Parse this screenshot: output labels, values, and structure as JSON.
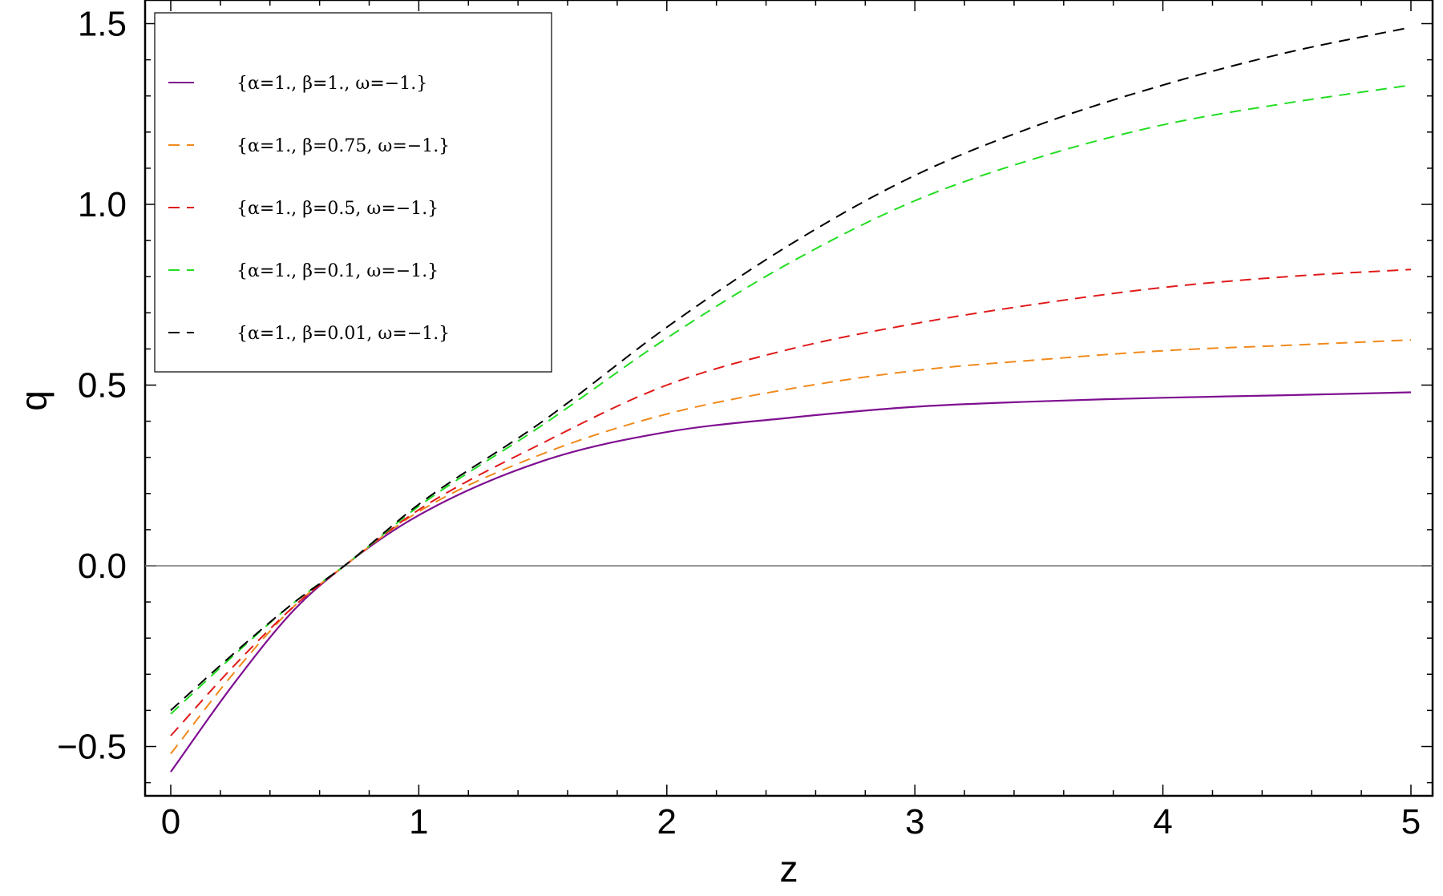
{
  "chart_data": {
    "type": "line",
    "xlabel": "z",
    "ylabel": "q",
    "xlim": [
      0,
      5
    ],
    "ylim": [
      -0.62,
      1.55
    ],
    "x_ticks": [
      0,
      1,
      2,
      3,
      4,
      5
    ],
    "x_tick_labels": [
      "0",
      "1",
      "2",
      "3",
      "4",
      "5"
    ],
    "y_ticks": [
      -0.5,
      0.0,
      0.5,
      1.0,
      1.5
    ],
    "y_tick_labels": [
      "−0.5",
      "0.0",
      "0.5",
      "1.0",
      "1.5"
    ],
    "grid": false,
    "zero_line": true,
    "legend_position": "top-left",
    "x": [
      0,
      0.25,
      0.5,
      0.7,
      1,
      1.5,
      2,
      2.5,
      3,
      3.5,
      4,
      4.5,
      5
    ],
    "series": [
      {
        "name": "{α=1., β=1., ω=−1.}",
        "color": "#7f0f91",
        "dashed": false,
        "values": [
          -0.57,
          -0.33,
          -0.12,
          0.0,
          0.14,
          0.29,
          0.37,
          0.41,
          0.44,
          0.455,
          0.465,
          0.472,
          0.48
        ]
      },
      {
        "name": "{α=1., β=0.75, ω=−1.}",
        "color": "#f08a1c",
        "dashed": true,
        "values": [
          -0.52,
          -0.3,
          -0.11,
          0.0,
          0.15,
          0.31,
          0.42,
          0.49,
          0.54,
          0.57,
          0.595,
          0.61,
          0.625
        ]
      },
      {
        "name": "{α=1., β=0.5, ω=−1.}",
        "color": "#e01a1a",
        "dashed": true,
        "values": [
          -0.47,
          -0.28,
          -0.11,
          0.0,
          0.155,
          0.34,
          0.5,
          0.6,
          0.67,
          0.725,
          0.77,
          0.8,
          0.82
        ]
      },
      {
        "name": "{α=1., β=0.1, ω=−1.}",
        "color": "#22dd22",
        "dashed": true,
        "values": [
          -0.41,
          -0.25,
          -0.1,
          0.0,
          0.165,
          0.39,
          0.63,
          0.84,
          1.01,
          1.13,
          1.22,
          1.28,
          1.33
        ]
      },
      {
        "name": "{α=1., β=0.01, ω=−1.}",
        "color": "#000000",
        "dashed": true,
        "values": [
          -0.4,
          -0.245,
          -0.1,
          0.0,
          0.17,
          0.4,
          0.66,
          0.89,
          1.08,
          1.22,
          1.33,
          1.42,
          1.49
        ]
      }
    ]
  }
}
